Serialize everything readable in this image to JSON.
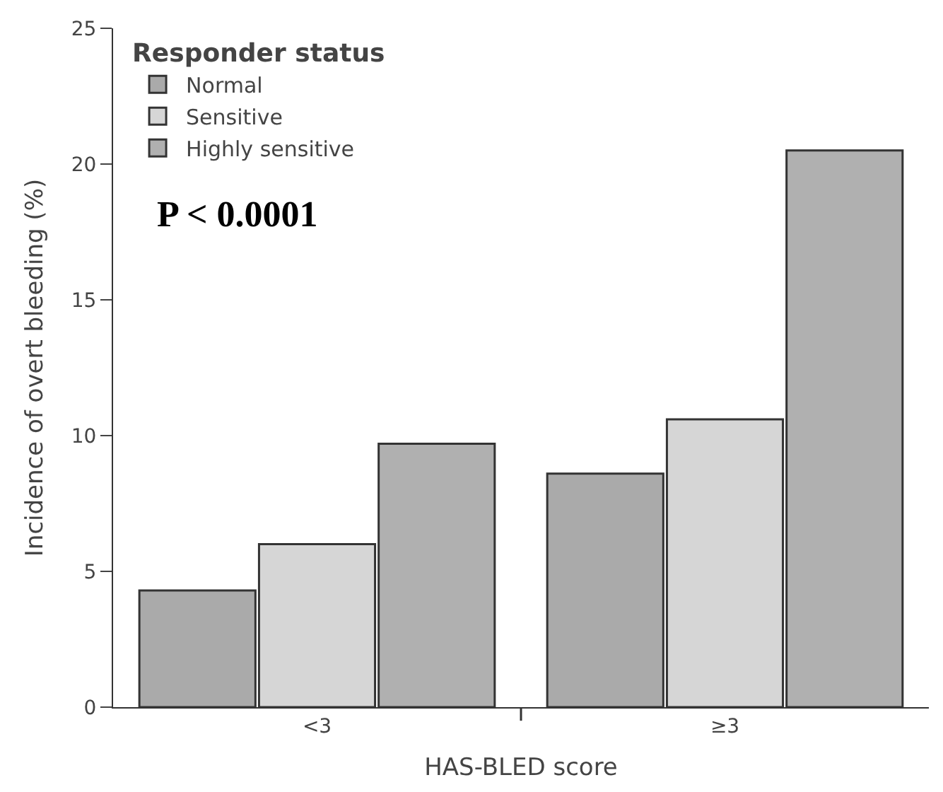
{
  "chart_data": {
    "type": "bar",
    "xlabel": "HAS-BLED score",
    "ylabel": "Incidence of overt bleeding (%)",
    "legend_title": "Responder status",
    "categories": [
      "<3",
      "≥3"
    ],
    "series": [
      {
        "name": "Normal",
        "color": "#aaaaaa",
        "values": [
          4.3,
          8.6
        ]
      },
      {
        "name": "Sensitive",
        "color": "#d6d6d6",
        "values": [
          6.0,
          10.6
        ]
      },
      {
        "name": "Highly sensitive",
        "color": "#b0b0b0",
        "values": [
          9.7,
          20.5
        ]
      }
    ],
    "ylim": [
      0,
      25
    ],
    "yticks": [
      0,
      5,
      10,
      15,
      20,
      25
    ],
    "legend": "top left",
    "annotations": [
      "P < 0.0001"
    ]
  }
}
